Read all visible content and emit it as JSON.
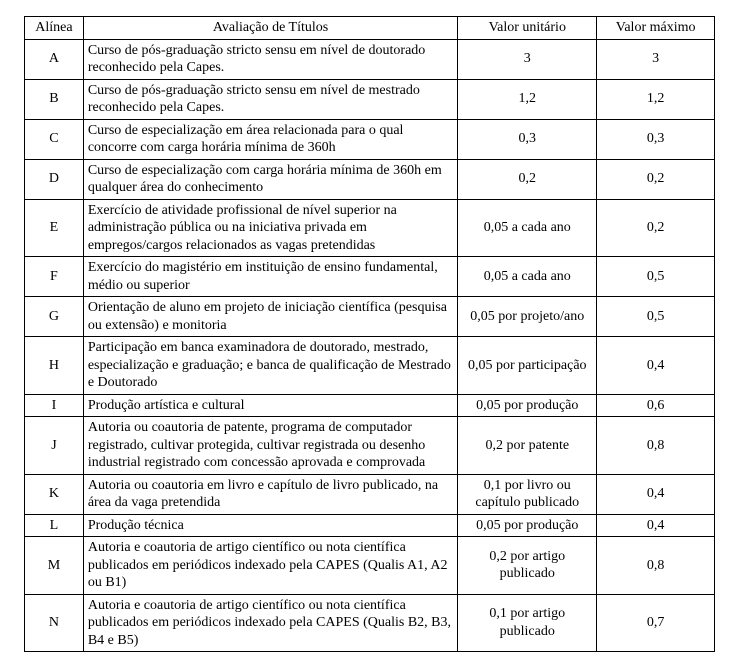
{
  "table": {
    "columns": {
      "alinea": "Alínea",
      "avaliacao": "Avaliação de Títulos",
      "unit": "Valor unitário",
      "max": "Valor máximo"
    },
    "rows": [
      {
        "alinea": "A",
        "avaliacao": "Curso de pós-graduação stricto sensu em nível de doutorado reconhecido pela Capes.",
        "unit": "3",
        "max": "3"
      },
      {
        "alinea": "B",
        "avaliacao": "Curso de pós-graduação stricto sensu em nível de mestrado reconhecido pela Capes.",
        "unit": "1,2",
        "max": "1,2"
      },
      {
        "alinea": "C",
        "avaliacao": "Curso de especialização em área relacionada para o qual concorre com carga horária mínima de 360h",
        "unit": "0,3",
        "max": "0,3"
      },
      {
        "alinea": "D",
        "avaliacao": "Curso de especialização com carga horária mínima de 360h em qualquer área do conhecimento",
        "unit": "0,2",
        "max": "0,2"
      },
      {
        "alinea": "E",
        "avaliacao": "Exercício de atividade profissional de nível superior na administração pública ou na iniciativa privada em empregos/cargos relacionados as vagas pretendidas",
        "unit": "0,05 a cada ano",
        "max": "0,2"
      },
      {
        "alinea": "F",
        "avaliacao": "Exercício do magistério em instituição de ensino fundamental, médio ou superior",
        "unit": "0,05 a cada ano",
        "max": "0,5"
      },
      {
        "alinea": "G",
        "avaliacao": "Orientação de aluno em projeto de iniciação científica (pesquisa ou extensão) e monitoria",
        "unit": "0,05 por projeto/ano",
        "max": "0,5"
      },
      {
        "alinea": "H",
        "avaliacao": "Participação em banca examinadora de doutorado, mestrado, especialização e graduação; e banca de qualificação de Mestrado e Doutorado",
        "unit": "0,05 por participação",
        "max": "0,4"
      },
      {
        "alinea": "I",
        "avaliacao": "Produção artística e cultural",
        "unit": "0,05 por produção",
        "max": "0,6"
      },
      {
        "alinea": "J",
        "avaliacao": "Autoria ou coautoria de patente, programa de computador registrado, cultivar protegida, cultivar registrada ou desenho industrial registrado com concessão aprovada e comprovada",
        "unit": "0,2 por patente",
        "max": "0,8"
      },
      {
        "alinea": "K",
        "avaliacao": "Autoria ou coautoria em livro e capítulo de livro publicado, na área da vaga pretendida",
        "unit": "0,1 por livro ou capítulo publicado",
        "max": "0,4"
      },
      {
        "alinea": "L",
        "avaliacao": "Produção técnica",
        "unit": "0,05 por produção",
        "max": "0,4"
      },
      {
        "alinea": "M",
        "avaliacao": "Autoria e coautoria de artigo científico ou nota científica publicados em periódicos indexado pela CAPES (Qualis A1, A2 ou B1)",
        "unit": "0,2 por artigo publicado",
        "max": "0,8"
      },
      {
        "alinea": "N",
        "avaliacao": "Autoria e coautoria de artigo científico ou nota científica publicados em periódicos indexado pela CAPES (Qualis B2, B3, B4 e B5)",
        "unit": "0,1 por artigo publicado",
        "max": "0,7"
      }
    ]
  }
}
